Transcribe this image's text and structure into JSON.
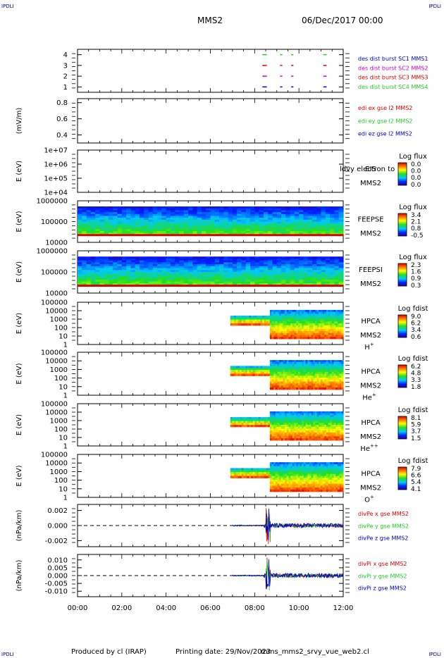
{
  "header": {
    "corner_tl": "IPDLI",
    "corner_tr": "IPDLI",
    "corner_bl": "IPDLI",
    "corner_br": "IPDLI",
    "mission": "MMS2",
    "date": "06/Dec/2017 00:00"
  },
  "footer": {
    "produced": "Produced by cl (IRAP)",
    "printing": "Printing date: 29/Nov/2023",
    "file": "mms_mms2_srvy_vue_web2.cl"
  },
  "colors": {
    "red": "#dd0000",
    "green": "#22cc22",
    "blue": "#0000cc",
    "magenta": "#cc00cc"
  },
  "chart_data": {
    "type": "stacked-timeseries",
    "x_ticks": [
      "00:00",
      "02:00",
      "04:00",
      "06:00",
      "08:00",
      "10:00",
      "12:00"
    ],
    "xlim": [
      0,
      12
    ],
    "panels": [
      {
        "id": "burst",
        "type": "line",
        "ylabel": "",
        "yticks": [
          "4",
          "3",
          "2",
          "1"
        ],
        "ylim": [
          0.5,
          4.5
        ],
        "legend": [
          {
            "text": "des dist burst SC1 MMS1",
            "color": "blue"
          },
          {
            "text": "des dist burst SC2 MMS2",
            "color": "magenta"
          },
          {
            "text": "des dist burst SC3 MMS3",
            "color": "red"
          },
          {
            "text": "des dist burst SC4 MMS4",
            "color": "green"
          }
        ],
        "segments": [
          {
            "level": 4,
            "color": "green",
            "x": [
              [
                8.35,
                8.55
              ],
              [
                9.15,
                9.25
              ],
              [
                9.65,
                9.75
              ],
              [
                11.1,
                11.25
              ]
            ]
          },
          {
            "level": 3,
            "color": "red",
            "x": [
              [
                8.35,
                8.55
              ],
              [
                9.15,
                9.25
              ],
              [
                9.65,
                9.75
              ],
              [
                11.1,
                11.25
              ]
            ]
          },
          {
            "level": 2,
            "color": "magenta",
            "x": [
              [
                8.35,
                8.55
              ],
              [
                9.15,
                9.25
              ],
              [
                9.65,
                9.75
              ],
              [
                11.1,
                11.25
              ]
            ]
          },
          {
            "level": 1,
            "color": "blue",
            "x": [
              [
                8.35,
                8.55
              ],
              [
                9.15,
                9.25
              ],
              [
                9.65,
                9.75
              ],
              [
                11.1,
                11.25
              ]
            ]
          }
        ]
      },
      {
        "id": "edi",
        "type": "line",
        "ylabel": "(mV/m)",
        "yticks": [
          "0.8",
          "0.6",
          "0.4"
        ],
        "ylim": [
          0.3,
          0.85
        ],
        "legend": [
          {
            "text": "edi ex gse l2 MMS2",
            "color": "red"
          },
          {
            "text": "edi ey gse l2 MMS2",
            "color": "green"
          },
          {
            "text": "edi ez gse l2 MMS2",
            "color": "blue"
          }
        ]
      },
      {
        "id": "eis",
        "type": "heatmap",
        "ylabel": "E (eV)",
        "yscale": "log",
        "yticks": [
          "1e+07",
          "1e+06",
          "1e+05",
          "1e+04"
        ],
        "instrument": [
          "EIS",
          "MMS2"
        ],
        "overlay_text": "ldvy electron to",
        "colorbar": {
          "title": "Log flux",
          "ticks": [
            "0.0",
            "0.0",
            "0.0",
            "0.0"
          ]
        }
      },
      {
        "id": "feepse",
        "type": "heatmap",
        "ylabel": "E (eV)",
        "yscale": "log",
        "yticks": [
          "1000000",
          "100000",
          "10000"
        ],
        "instrument": [
          "FEEPSE",
          "MMS2"
        ],
        "coverage": [
          0,
          12
        ],
        "colorbar": {
          "title": "Log flux",
          "ticks": [
            "3.4",
            "2.1",
            "0.8",
            "-0.5"
          ]
        }
      },
      {
        "id": "feepsi",
        "type": "heatmap",
        "ylabel": "E (eV)",
        "yscale": "log",
        "yticks": [
          "1000000",
          "100000",
          "10000"
        ],
        "instrument": [
          "FEEPSI",
          "MMS2"
        ],
        "coverage": [
          0,
          12
        ],
        "colorbar": {
          "title": "Log flux",
          "ticks": [
            "2.3",
            "1.6",
            "0.9",
            "0.3"
          ]
        }
      },
      {
        "id": "hpca_h",
        "type": "heatmap",
        "ylabel": "E (eV)",
        "yscale": "log",
        "yticks": [
          "100000",
          "10000",
          "1000",
          "100",
          "10",
          "1"
        ],
        "instrument": [
          "HPCA",
          "MMS2"
        ],
        "species": {
          "base": "H",
          "sup": "+"
        },
        "coverage": [
          6.9,
          12
        ],
        "colorbar": {
          "title": "Log fdist",
          "ticks": [
            "9.0",
            "6.2",
            "3.4",
            "0.6"
          ]
        }
      },
      {
        "id": "hpca_he",
        "type": "heatmap",
        "ylabel": "E (eV)",
        "yscale": "log",
        "yticks": [
          "100000",
          "10000",
          "1000",
          "100",
          "10",
          "1"
        ],
        "instrument": [
          "HPCA",
          "MMS2"
        ],
        "species": {
          "base": "He",
          "sup": "+"
        },
        "coverage": [
          6.9,
          12
        ],
        "colorbar": {
          "title": "Log fdist",
          "ticks": [
            "6.2",
            "4.8",
            "3.3",
            "1.8"
          ]
        }
      },
      {
        "id": "hpca_hepp",
        "type": "heatmap",
        "ylabel": "E (eV)",
        "yscale": "log",
        "yticks": [
          "100000",
          "10000",
          "1000",
          "100",
          "10",
          "1"
        ],
        "instrument": [
          "HPCA",
          "MMS2"
        ],
        "species": {
          "base": "He",
          "sup": "++"
        },
        "coverage": [
          6.9,
          12
        ],
        "colorbar": {
          "title": "Log fdist",
          "ticks": [
            "8.1",
            "5.9",
            "3.7",
            "1.5"
          ]
        }
      },
      {
        "id": "hpca_o",
        "type": "heatmap",
        "ylabel": "E (eV)",
        "yscale": "log",
        "yticks": [
          "100000",
          "10000",
          "1000",
          "100",
          "10",
          "1"
        ],
        "instrument": [
          "HPCA",
          "MMS2"
        ],
        "species": {
          "base": "O",
          "sup": "+"
        },
        "coverage": [
          6.9,
          12
        ],
        "colorbar": {
          "title": "Log fdist",
          "ticks": [
            "7.9",
            "6.6",
            "5.4",
            "4.1"
          ]
        }
      },
      {
        "id": "divpe",
        "type": "line",
        "ylabel": "(nPa/km)",
        "yticks": [
          "0.002",
          "0.000",
          "-0.002"
        ],
        "ylim": [
          -0.0028,
          0.0028
        ],
        "zero_line": true,
        "legend": [
          {
            "text": "divPe x gse MMS2",
            "color": "red"
          },
          {
            "text": "divPe y gse MMS2",
            "color": "green"
          },
          {
            "text": "divPe z gse MMS2",
            "color": "blue"
          }
        ]
      },
      {
        "id": "divpi",
        "type": "line",
        "ylabel": "(nPa/km)",
        "yticks": [
          "0.010",
          "0.005",
          "0.000",
          "-0.005",
          "-0.010"
        ],
        "ylim": [
          -0.0135,
          0.0135
        ],
        "zero_line": true,
        "legend": [
          {
            "text": "divPi x gse MMS2",
            "color": "red"
          },
          {
            "text": "divPi y gse MMS2",
            "color": "green"
          },
          {
            "text": "divPi z gse MMS2",
            "color": "blue"
          }
        ]
      }
    ]
  }
}
